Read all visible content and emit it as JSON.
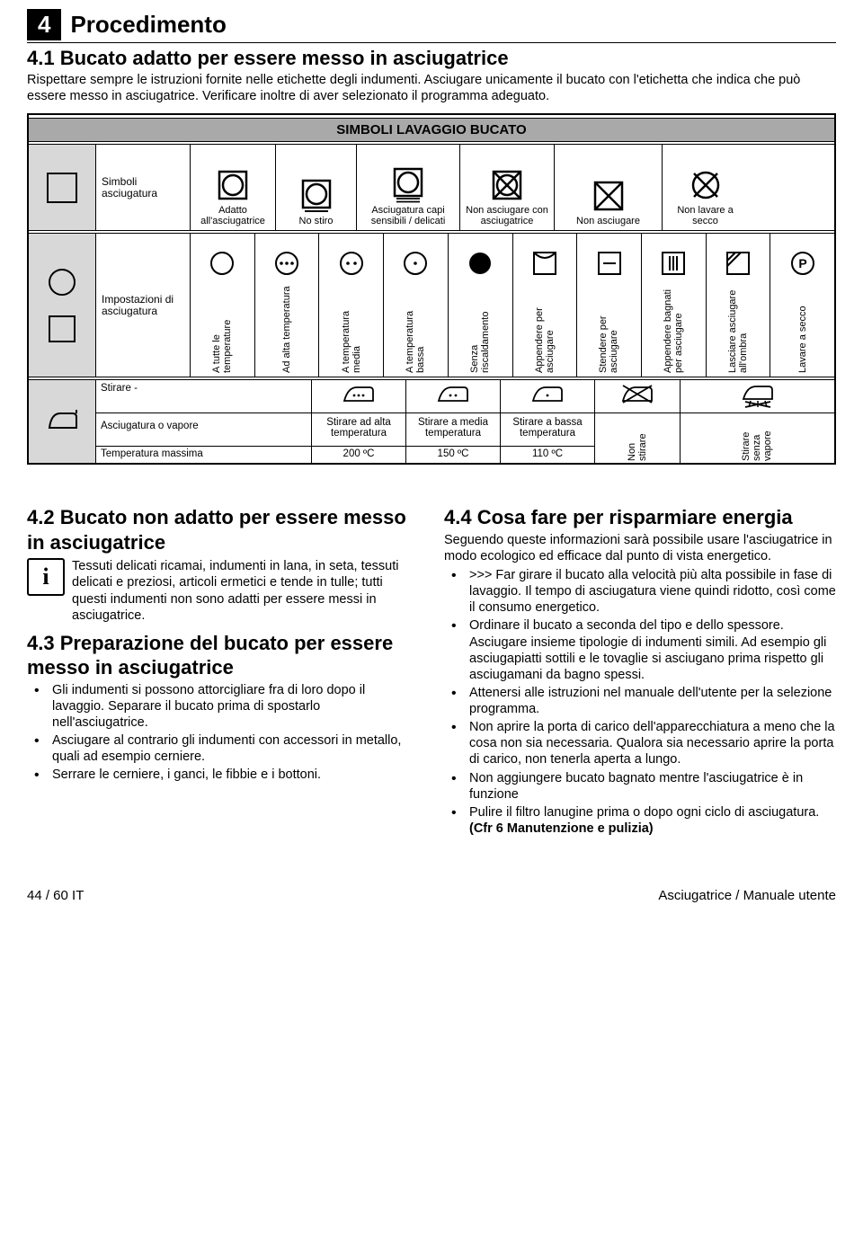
{
  "section": {
    "num": "4",
    "title": "Procedimento"
  },
  "s41": {
    "heading": "4.1 Bucato adatto per essere messo in asciugatrice",
    "intro": "Rispettare sempre le istruzioni fornite nelle etichette degli indumenti. Asciugare unicamente il bucato con l'etichetta che indica che può essere messo in asciugatrice. Verificare inoltre di aver selezionato il programma adeguato."
  },
  "table": {
    "title": "SIMBOLI LAVAGGIO BUCATO",
    "row1": {
      "label": "Simboli asciugatura",
      "cells": [
        "Adatto all'asciugatrice",
        "No stiro",
        "Asciugatura capi sensibili / delicati",
        "Non asciugare con asciugatrice",
        "Non asciugare",
        "Non lavare a secco"
      ]
    },
    "row2": {
      "label": "Impostazioni di asciugatura",
      "cells": [
        "A tutte le temperature",
        "Ad alta temperatura",
        "A temperatura media",
        "A temperatura bassa",
        "Senza riscaldamento",
        "Appendere per asciugare",
        "Stendere per asciugare",
        "Appendere bagnati per asciugare",
        "Lasciare asciugare all'ombra",
        "Lavare a secco"
      ]
    },
    "row3": {
      "stirare": "Stirare -",
      "r1": "Asciugatura o vapore",
      "r2": "Temperatura massima",
      "labels": [
        "Stirare ad alta temperatura",
        "Stirare a media temperatura",
        "Stirare a bassa temperatura"
      ],
      "temps": [
        "200 ºC",
        "150 ºC",
        "110 ºC"
      ],
      "extra": [
        "Non stirare",
        "Stirare senza vapore"
      ]
    }
  },
  "s42": {
    "heading": "4.2 Bucato non adatto per essere messo in asciugatrice",
    "info": "Tessuti delicati ricamai, indumenti in lana, in seta, tessuti delicati e preziosi, articoli ermetici e tende in tulle; tutti questi indumenti non sono adatti per essere messi in asciugatrice."
  },
  "s43": {
    "heading": "4.3 Preparazione del bucato per essere messo in asciugatrice",
    "items": [
      "Gli indumenti si possono attorcigliare fra di loro dopo il lavaggio. Separare il bucato prima di spostarlo nell'asciugatrice.",
      "Asciugare al contrario gli indumenti con accessori in metallo, quali ad esempio cerniere.",
      "Serrare le cerniere, i ganci, le fibbie e i bottoni."
    ]
  },
  "s44": {
    "heading": "4.4 Cosa fare per risparmiare energia",
    "intro": "Seguendo queste informazioni sarà possibile usare l'asciugatrice in modo ecologico ed efficace dal punto di vista energetico.",
    "items": [
      ">>> Far girare il bucato alla velocità più alta possibile in fase di lavaggio. Il tempo di asciugatura viene quindi ridotto, così come il consumo energetico.",
      "Ordinare il bucato a seconda del tipo e dello spessore. Asciugare insieme tipologie di indumenti simili. Ad esempio gli asciugapiatti sottili e le tovaglie si asciugano prima rispetto gli asciugamani da bagno spessi.",
      "Attenersi alle istruzioni nel manuale dell'utente per la selezione programma.",
      "Non aprire la porta di carico dell'apparecchiatura a meno che la cosa non sia necessaria. Qualora sia necessario aprire la porta di carico, non tenerla aperta a lungo.",
      "Non aggiungere bucato bagnato mentre l'asciugatrice è in funzione",
      "Pulire il filtro lanugine prima o dopo ogni ciclo di asciugatura. <b>(Cfr 6 Manutenzione e pulizia)</b>"
    ]
  },
  "footer": {
    "left": "44 / 60 IT",
    "right": "Asciugatrice / Manuale utente"
  }
}
